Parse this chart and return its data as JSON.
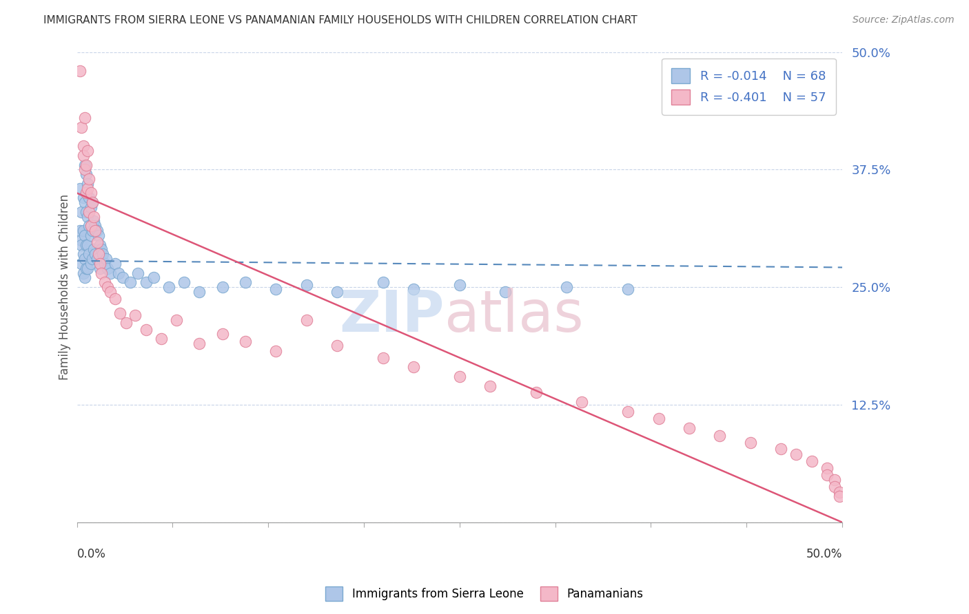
{
  "title": "IMMIGRANTS FROM SIERRA LEONE VS PANAMANIAN FAMILY HOUSEHOLDS WITH CHILDREN CORRELATION CHART",
  "source": "Source: ZipAtlas.com",
  "ylabel": "Family Households with Children",
  "yticks": [
    0.0,
    0.125,
    0.25,
    0.375,
    0.5
  ],
  "ytick_labels": [
    "",
    "12.5%",
    "25.0%",
    "37.5%",
    "50.0%"
  ],
  "xmin": 0.0,
  "xmax": 0.5,
  "ymin": 0.0,
  "ymax": 0.5,
  "series1_label": "Immigrants from Sierra Leone",
  "series1_R": "-0.014",
  "series1_N": "68",
  "series1_color": "#aec6e8",
  "series1_edge": "#7aa8d0",
  "series2_label": "Panamanians",
  "series2_R": "-0.401",
  "series2_N": "57",
  "series2_color": "#f4b8c8",
  "series2_edge": "#e08098",
  "trend1_color": "#5588bb",
  "trend2_color": "#dd5577",
  "watermark_zip_color": "#c5d8f0",
  "watermark_atlas_color": "#e8c0cc",
  "background_color": "#ffffff",
  "grid_color": "#c8d4e8",
  "series1_x": [
    0.002,
    0.002,
    0.003,
    0.003,
    0.003,
    0.003,
    0.004,
    0.004,
    0.004,
    0.004,
    0.005,
    0.005,
    0.005,
    0.005,
    0.005,
    0.006,
    0.006,
    0.006,
    0.006,
    0.007,
    0.007,
    0.007,
    0.007,
    0.008,
    0.008,
    0.008,
    0.009,
    0.009,
    0.009,
    0.01,
    0.01,
    0.01,
    0.011,
    0.011,
    0.012,
    0.012,
    0.013,
    0.013,
    0.014,
    0.015,
    0.015,
    0.016,
    0.017,
    0.018,
    0.019,
    0.02,
    0.022,
    0.025,
    0.027,
    0.03,
    0.035,
    0.04,
    0.045,
    0.05,
    0.06,
    0.07,
    0.08,
    0.095,
    0.11,
    0.13,
    0.15,
    0.17,
    0.2,
    0.22,
    0.25,
    0.28,
    0.32,
    0.36
  ],
  "series1_y": [
    0.355,
    0.31,
    0.33,
    0.3,
    0.275,
    0.295,
    0.345,
    0.31,
    0.285,
    0.265,
    0.38,
    0.34,
    0.305,
    0.28,
    0.26,
    0.37,
    0.33,
    0.295,
    0.27,
    0.36,
    0.325,
    0.295,
    0.27,
    0.345,
    0.315,
    0.285,
    0.335,
    0.305,
    0.275,
    0.34,
    0.31,
    0.28,
    0.32,
    0.29,
    0.315,
    0.285,
    0.31,
    0.28,
    0.305,
    0.295,
    0.27,
    0.29,
    0.285,
    0.275,
    0.28,
    0.27,
    0.265,
    0.275,
    0.265,
    0.26,
    0.255,
    0.265,
    0.255,
    0.26,
    0.25,
    0.255,
    0.245,
    0.25,
    0.255,
    0.248,
    0.252,
    0.245,
    0.255,
    0.248,
    0.252,
    0.245,
    0.25,
    0.248
  ],
  "series2_x": [
    0.002,
    0.003,
    0.004,
    0.004,
    0.005,
    0.005,
    0.006,
    0.006,
    0.007,
    0.007,
    0.008,
    0.008,
    0.009,
    0.009,
    0.01,
    0.011,
    0.012,
    0.013,
    0.014,
    0.015,
    0.016,
    0.018,
    0.02,
    0.022,
    0.025,
    0.028,
    0.032,
    0.038,
    0.045,
    0.055,
    0.065,
    0.08,
    0.095,
    0.11,
    0.13,
    0.15,
    0.17,
    0.2,
    0.22,
    0.25,
    0.27,
    0.3,
    0.33,
    0.36,
    0.38,
    0.4,
    0.42,
    0.44,
    0.46,
    0.47,
    0.48,
    0.49,
    0.49,
    0.495,
    0.495,
    0.498,
    0.498
  ],
  "series2_y": [
    0.48,
    0.42,
    0.4,
    0.39,
    0.43,
    0.375,
    0.38,
    0.35,
    0.395,
    0.355,
    0.365,
    0.33,
    0.35,
    0.315,
    0.34,
    0.325,
    0.31,
    0.298,
    0.285,
    0.275,
    0.265,
    0.255,
    0.25,
    0.245,
    0.238,
    0.222,
    0.212,
    0.22,
    0.205,
    0.195,
    0.215,
    0.19,
    0.2,
    0.192,
    0.182,
    0.215,
    0.188,
    0.175,
    0.165,
    0.155,
    0.145,
    0.138,
    0.128,
    0.118,
    0.11,
    0.1,
    0.092,
    0.085,
    0.078,
    0.072,
    0.065,
    0.058,
    0.05,
    0.045,
    0.038,
    0.032,
    0.028
  ]
}
